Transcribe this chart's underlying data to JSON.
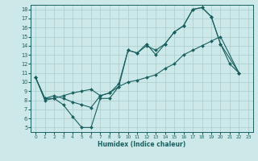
{
  "xlabel": "Humidex (Indice chaleur)",
  "bg_color": "#cce8e8",
  "grid_color": "#a8cccc",
  "line_color": "#1a6060",
  "xlim": [
    -0.5,
    23.5
  ],
  "ylim": [
    4.5,
    18.5
  ],
  "xticks": [
    0,
    1,
    2,
    3,
    4,
    5,
    6,
    7,
    8,
    9,
    10,
    11,
    12,
    13,
    14,
    15,
    16,
    17,
    18,
    19,
    20,
    21,
    22,
    23
  ],
  "yticks": [
    5,
    6,
    7,
    8,
    9,
    10,
    11,
    12,
    13,
    14,
    15,
    16,
    17,
    18
  ],
  "line1_x": [
    0,
    1,
    2,
    3,
    4,
    5,
    6,
    7,
    8,
    9,
    10,
    11,
    12,
    13,
    14,
    15,
    16,
    17,
    18,
    19,
    20,
    21,
    22
  ],
  "line1_y": [
    10.5,
    8.2,
    8.2,
    7.5,
    6.2,
    5.0,
    5.0,
    8.2,
    8.2,
    9.5,
    13.5,
    13.2,
    14.2,
    13.0,
    14.2,
    15.5,
    16.2,
    18.0,
    18.2,
    17.2,
    14.2,
    12.0,
    11.0
  ],
  "line2_x": [
    0,
    1,
    2,
    3,
    4,
    5,
    6,
    7,
    8,
    9,
    10,
    11,
    12,
    13,
    14,
    15,
    16,
    17,
    18,
    19,
    20,
    22
  ],
  "line2_y": [
    10.5,
    8.2,
    8.5,
    8.2,
    7.8,
    7.5,
    7.2,
    8.5,
    8.8,
    9.8,
    13.5,
    13.2,
    14.0,
    13.5,
    14.2,
    15.5,
    16.2,
    18.0,
    18.2,
    17.2,
    14.2,
    11.0
  ],
  "line3_x": [
    0,
    1,
    2,
    3,
    4,
    5,
    6,
    7,
    8,
    9,
    10,
    11,
    12,
    13,
    14,
    15,
    16,
    17,
    18,
    19,
    20,
    22
  ],
  "line3_y": [
    10.5,
    8.0,
    8.2,
    8.5,
    8.8,
    9.0,
    9.2,
    8.5,
    8.8,
    9.5,
    10.0,
    10.2,
    10.5,
    10.8,
    11.5,
    12.0,
    13.0,
    13.5,
    14.0,
    14.5,
    15.0,
    11.0
  ]
}
